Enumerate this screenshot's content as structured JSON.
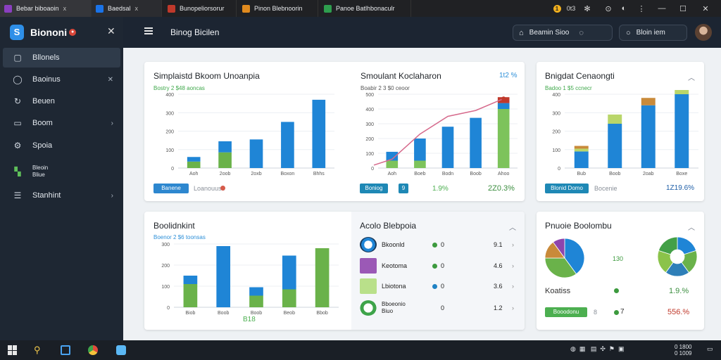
{
  "tabs": [
    {
      "label": "Bebar biboaoin",
      "close": "x",
      "color": "#8a3fbf"
    },
    {
      "label": "Baedsal",
      "close": "x",
      "color": "#1a73e8"
    },
    {
      "label": "Bunopeliorsorur",
      "color": "#c0392b"
    },
    {
      "label": "Pinon Blebnoorin",
      "color": "#e08a1e"
    },
    {
      "label": "Panoe Batlhbonaculr",
      "color": "#2e9e4e"
    }
  ],
  "window": {
    "badge": "1",
    "count": "0t3"
  },
  "sidebar": {
    "brand": "Biononi",
    "brand_logo": "S",
    "items": [
      {
        "label": "Bllonels",
        "icon": "square-icon"
      },
      {
        "label": "Baoinus",
        "icon": "chat-icon"
      },
      {
        "label": "Beuen",
        "icon": "refresh-icon"
      },
      {
        "label": "Boom",
        "icon": "box-icon"
      },
      {
        "label": "Spoia",
        "icon": "gear-icon"
      },
      {
        "label": "Bleoin",
        "label2": "Bliue",
        "icon": "chart-icon"
      },
      {
        "label": "Stanhint",
        "icon": "server-icon"
      }
    ]
  },
  "header": {
    "title": "Binog Bicilen",
    "button_label": "Beamin Sioo",
    "search_label": "Bloin iem"
  },
  "cards": {
    "c1": {
      "title": "Simplaistd Bkoom Unoanpia",
      "subtitle": "Bostry 2 $48 aoncas",
      "button": "Banene",
      "footer_text": "Loanouuse"
    },
    "c2": {
      "title": "Smoulant Koclaharon",
      "subtitle": "Boabir 2 3 $0 ceoor",
      "percent_top": "1t2 %",
      "button": "Boniog",
      "mini": "9",
      "footer_a": "1.9%",
      "footer_b": "2Z0.3%"
    },
    "c3": {
      "title": "Bnigdat Cenaongti",
      "subtitle": "Badoo 1 $5 ccnecr",
      "button": "Blonid Domo",
      "footer_text": "Bocenie",
      "footer_pct": "1Z19.6%"
    },
    "c4": {
      "title": "Boolidnkint",
      "subtitle": "Boenor 2 $6 toonsas",
      "bottom_label": "B18"
    },
    "c5": {
      "title": "Acolo Blebpoia",
      "rows": [
        {
          "name": "Bkoonld",
          "v1": "0",
          "v2": "9.1",
          "dot": "#3c9a3e"
        },
        {
          "name": "Keotoma",
          "v1": "0",
          "v2": "4.6",
          "dot": "#3c9a3e"
        },
        {
          "name": "Lbiotona",
          "v1": "0",
          "v2": "3.6",
          "dot": "#1f82c4"
        },
        {
          "name": "Bboeonio",
          "name2": "Biuo",
          "v1": "0",
          "v2": "1.2"
        }
      ]
    },
    "c6": {
      "title": "Pnuoie Boolombu",
      "pie_label": "130",
      "legend": "Koatiss",
      "footer_pct1": "1.9.%",
      "button": "Booodonu",
      "footer_small1": "8",
      "footer_small2": "7",
      "footer_pct2": "556.%"
    }
  },
  "chart_data": [
    {
      "type": "bar",
      "title": "Simplaistd Bkoom Unoanpia",
      "categories": [
        "Aoh",
        "2oob",
        "2oxb",
        "Boxon",
        "Bhhs"
      ],
      "y_ticks": [
        "0",
        "100",
        "200",
        "300",
        "400"
      ],
      "ylim": [
        0,
        400
      ],
      "series": [
        {
          "values": [
            35,
            85,
            0,
            0,
            0
          ],
          "color": "#6ab24a"
        },
        {
          "values": [
            25,
            60,
            155,
            250,
            370
          ],
          "color": "#1f85d6"
        }
      ],
      "stacked": true
    },
    {
      "type": "bar+line",
      "title": "Smoulant Koclaharon",
      "categories": [
        "Aoh",
        "Boeb",
        "Bodn",
        "Boob",
        "Ahoo"
      ],
      "y_ticks": [
        "0",
        "100",
        "200",
        "300",
        "400",
        "500"
      ],
      "ylim": [
        0,
        500
      ],
      "series": [
        {
          "values": [
            50,
            50,
            0,
            0,
            400
          ],
          "color": "#7dc35b"
        },
        {
          "values": [
            60,
            150,
            280,
            340,
            40
          ],
          "color": "#1f85d6"
        },
        {
          "values": [
            0,
            0,
            0,
            0,
            40
          ],
          "color": "#c0392b"
        }
      ],
      "line": {
        "values": [
          60,
          230,
          350,
          390,
          470
        ],
        "color": "#d66a8c"
      }
    },
    {
      "type": "bar",
      "title": "Bnigdat Cenaongti",
      "categories": [
        "Bub",
        "Boob",
        "2oab",
        "Boxe"
      ],
      "y_ticks": [
        "0",
        "100",
        "200",
        "300",
        "400"
      ],
      "ylim": [
        0,
        400
      ],
      "series": [
        {
          "values": [
            90,
            240,
            340,
            400
          ],
          "color": "#1f85d6"
        },
        {
          "values": [
            15,
            50,
            0,
            40
          ],
          "color": "#b9d66a"
        },
        {
          "values": [
            15,
            0,
            40,
            0
          ],
          "color": "#c98a3a"
        }
      ],
      "stacked": true
    },
    {
      "type": "bar",
      "title": "Boolidnkint",
      "categories": [
        "Biob",
        "Boob",
        "Boob",
        "Beob",
        "Bbob"
      ],
      "y_ticks": [
        "0",
        "100",
        "200",
        "300"
      ],
      "ylim": [
        0,
        300
      ],
      "series": [
        {
          "values": [
            110,
            0,
            55,
            85,
            280
          ],
          "color": "#6ab24a"
        },
        {
          "values": [
            40,
            290,
            40,
            160,
            0
          ],
          "color": "#1f85d6"
        }
      ],
      "stacked": true
    },
    {
      "type": "pie",
      "title": "Pnuoie Boolombu",
      "slices": [
        {
          "value": 40,
          "color": "#1f85d6"
        },
        {
          "value": 35,
          "color": "#6ab24a"
        },
        {
          "value": 15,
          "color": "#c98a3a"
        },
        {
          "value": 10,
          "color": "#8e44ad"
        }
      ]
    },
    {
      "type": "pie",
      "title": "Pnuoie Boolombu",
      "donut": true,
      "slices": [
        {
          "value": 20,
          "color": "#1f85d6"
        },
        {
          "value": 20,
          "color": "#6ab24a"
        },
        {
          "value": 20,
          "color": "#2e7fb8"
        },
        {
          "value": 20,
          "color": "#8bc34a"
        },
        {
          "value": 20,
          "color": "#43a047"
        }
      ]
    }
  ],
  "taskbar": {
    "tray_time": "0 1800",
    "tray_date": "0 1009"
  }
}
